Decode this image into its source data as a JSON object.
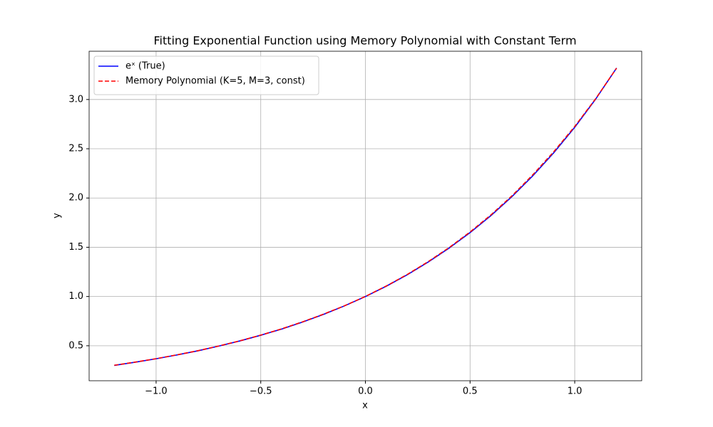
{
  "chart_data": {
    "type": "line",
    "title": "Fitting Exponential Function using Memory Polynomial with Constant Term",
    "x_label": "x",
    "y_label": "y",
    "x": [
      -1.2,
      -1.1,
      -1.0,
      -0.9,
      -0.8,
      -0.7,
      -0.6,
      -0.5,
      -0.4,
      -0.3,
      -0.2,
      -0.1,
      0,
      0.1,
      0.2,
      0.3,
      0.4,
      0.5,
      0.6,
      0.7,
      0.8,
      0.9,
      1.0,
      1.1,
      1.2
    ],
    "series": [
      {
        "name": "eˣ (True)",
        "color": "#0000ff",
        "dash": false,
        "values": [
          0.301,
          0.333,
          0.368,
          0.407,
          0.449,
          0.497,
          0.549,
          0.607,
          0.67,
          0.741,
          0.819,
          0.905,
          1.0,
          1.105,
          1.221,
          1.35,
          1.492,
          1.649,
          1.822,
          2.014,
          2.226,
          2.46,
          2.718,
          3.004,
          3.32
        ]
      },
      {
        "name": "Memory Polynomial (K=5, M=3, const)",
        "color": "#ff0000",
        "dash": true,
        "values": [
          0.302,
          0.334,
          0.369,
          0.408,
          0.45,
          0.498,
          0.55,
          0.608,
          0.672,
          0.743,
          0.821,
          0.906,
          1.001,
          1.107,
          1.224,
          1.354,
          1.497,
          1.655,
          1.829,
          2.022,
          2.236,
          2.47,
          2.726,
          3.008,
          3.318
        ]
      }
    ],
    "xlim": [
      -1.32,
      1.32
    ],
    "ylim": [
      0.145,
      3.49
    ],
    "xticks": [
      {
        "value": -1,
        "label": "−1.0"
      },
      {
        "value": -0.5,
        "label": "−0.5"
      },
      {
        "value": 0,
        "label": "0.0"
      },
      0.5,
      {
        "value": 1,
        "label": "1.0"
      }
    ],
    "yticks": [
      0.5,
      {
        "value": 1,
        "label": "1.0"
      },
      1.5,
      {
        "value": 2,
        "label": "2.0"
      },
      2.5,
      {
        "value": 3,
        "label": "3.0"
      }
    ],
    "grid": true,
    "legend": "upper-left"
  }
}
